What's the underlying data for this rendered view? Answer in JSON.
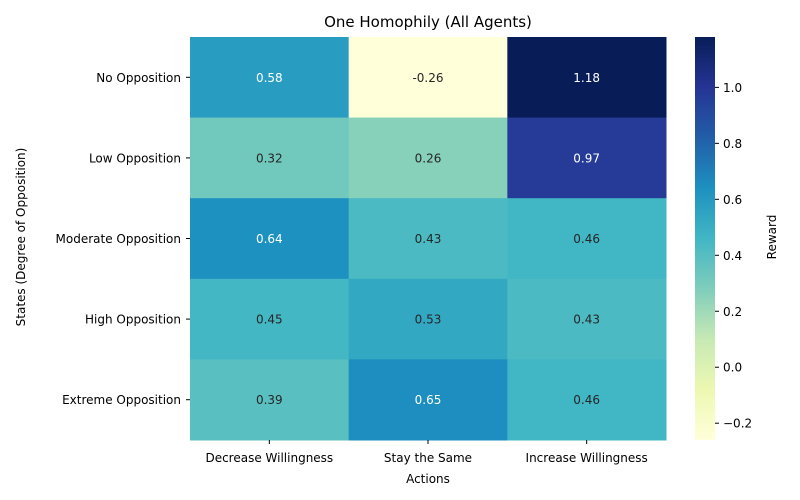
{
  "chart_data": {
    "type": "heatmap",
    "title": "One Homophily (All Agents)",
    "xlabel": "Actions",
    "ylabel": "States (Degree of Opposition)",
    "x_categories": [
      "Decrease Willingness",
      "Stay the Same",
      "Increase Willingness"
    ],
    "y_categories": [
      "No Opposition",
      "Low Opposition",
      "Moderate Opposition",
      "High Opposition",
      "Extreme Opposition"
    ],
    "values": [
      [
        0.58,
        -0.26,
        1.18
      ],
      [
        0.32,
        0.26,
        0.97
      ],
      [
        0.64,
        0.43,
        0.46
      ],
      [
        0.45,
        0.53,
        0.43
      ],
      [
        0.39,
        0.65,
        0.46
      ]
    ],
    "value_labels": [
      [
        "0.58",
        "-0.26",
        "1.18"
      ],
      [
        "0.32",
        "0.26",
        "0.97"
      ],
      [
        "0.64",
        "0.43",
        "0.46"
      ],
      [
        "0.45",
        "0.53",
        "0.43"
      ],
      [
        "0.39",
        "0.65",
        "0.46"
      ]
    ],
    "colorbar": {
      "label": "Reward",
      "min": -0.26,
      "max": 1.18,
      "ticks": [
        -0.2,
        0.0,
        0.2,
        0.4,
        0.6,
        0.8,
        1.0
      ],
      "tick_labels": [
        "−0.2",
        "0.0",
        "0.2",
        "0.4",
        "0.6",
        "0.8",
        "1.0"
      ]
    },
    "colormap": "YlGnBu",
    "colormap_stops": [
      "#ffffd9",
      "#edf8b1",
      "#c7e9b4",
      "#7fcdbb",
      "#41b6c4",
      "#1d91c0",
      "#225ea8",
      "#253494",
      "#081d58"
    ],
    "annotation_colors": {
      "light": "#ffffff",
      "dark": "#262626"
    }
  }
}
